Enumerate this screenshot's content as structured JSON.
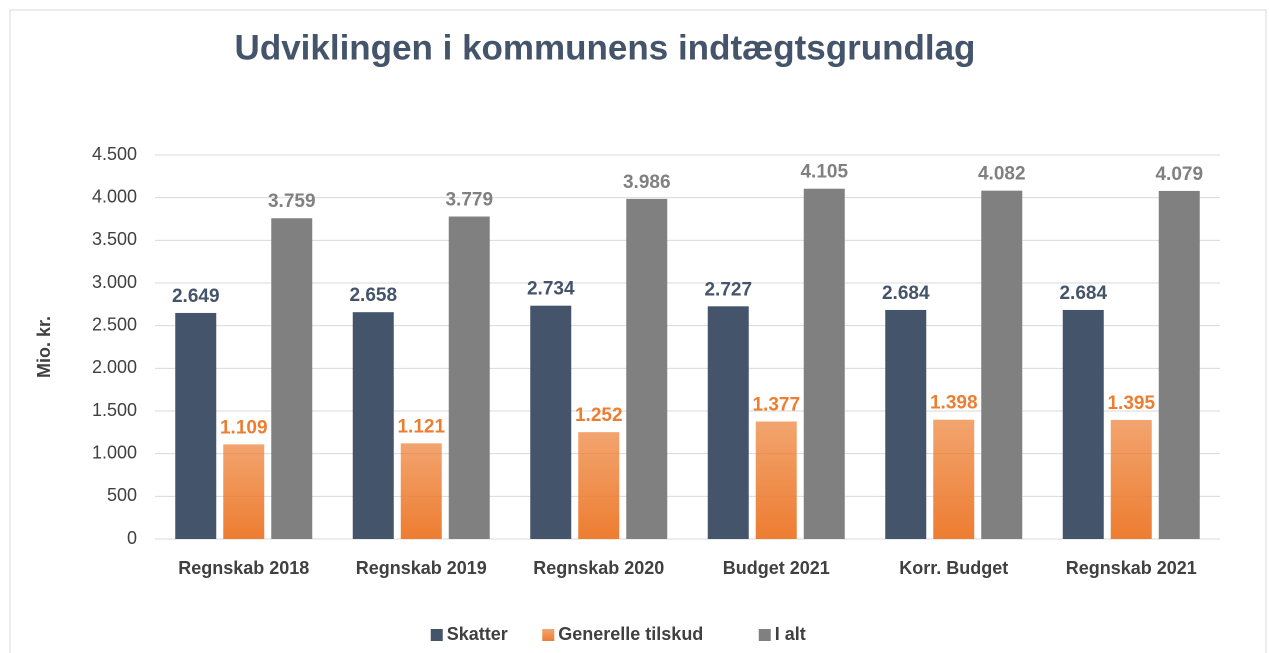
{
  "chart_data": {
    "type": "bar",
    "title": "Udviklingen i kommunens indtægtsgrundlag",
    "y_label": "Mio. kr.",
    "categories": [
      "Regnskab 2018",
      "Regnskab 2019",
      "Regnskab 2020",
      "Budget 2021",
      "Korr. Budget",
      "Regnskab 2021"
    ],
    "series": [
      {
        "name": "Skatter",
        "color": "#44546a",
        "values": [
          2649,
          2658,
          2734,
          2727,
          2684,
          2684
        ],
        "value_labels": [
          "2.649",
          "2.658",
          "2.734",
          "2.727",
          "2.684",
          "2.684"
        ]
      },
      {
        "name": "Generelle tilskud",
        "color": "#ed7d31",
        "gradient": true,
        "values": [
          1109,
          1121,
          1252,
          1377,
          1398,
          1395
        ],
        "value_labels": [
          "1.109",
          "1.121",
          "1.252",
          "1.377",
          "1.398",
          "1.395"
        ]
      },
      {
        "name": "I alt",
        "color": "#808080",
        "values": [
          3759,
          3779,
          3986,
          4105,
          4082,
          4079
        ],
        "value_labels": [
          "3.759",
          "3.779",
          "3.986",
          "4.105",
          "4.082",
          "4.079"
        ]
      }
    ],
    "ylim": [
      0,
      4500
    ],
    "yticks": [
      0,
      500,
      {
        "value": 1000,
        "label": "1.000"
      },
      {
        "value": 1500,
        "label": "1.500"
      },
      {
        "value": 2000,
        "label": "2.000"
      },
      {
        "value": 2500,
        "label": "2.500"
      },
      {
        "value": 3000,
        "label": "3.000"
      },
      {
        "value": 3500,
        "label": "3.500"
      },
      {
        "value": 4000,
        "label": "4.000"
      },
      {
        "value": 4500,
        "label": "4.500"
      }
    ],
    "grid": true,
    "legend": "bottom"
  }
}
